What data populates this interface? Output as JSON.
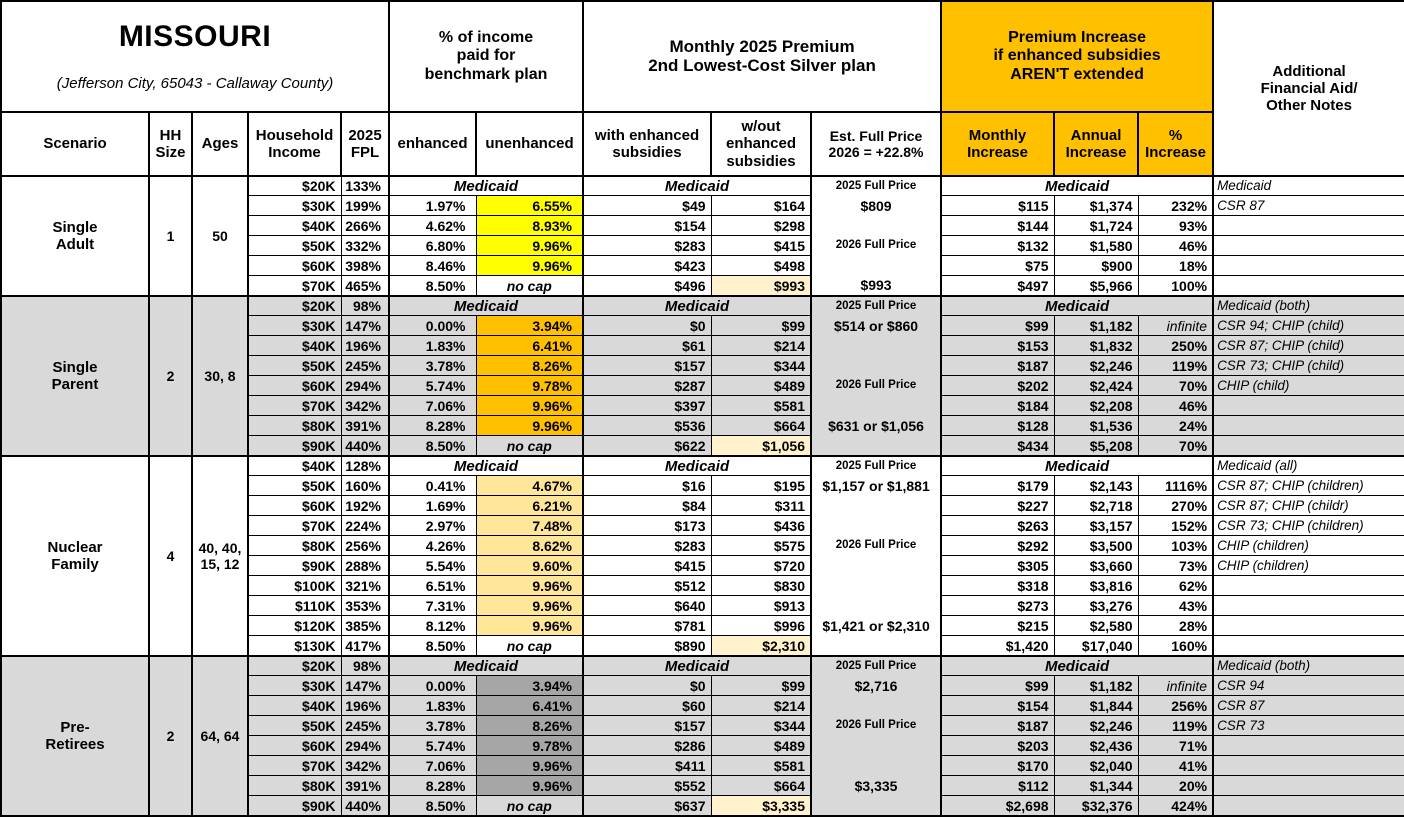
{
  "header": {
    "title": "MISSOURI",
    "subtitle": "(Jefferson City, 65043 - Callaway County)",
    "pct_income_group": "% of income\npaid for\nbenchmark plan",
    "premium_group": "Monthly 2025 Premium\n2nd Lowest-Cost Silver plan",
    "increase_group": "Premium Increase\nif enhanced subsidies\nAREN'T extended",
    "notes_header": "Additional\nFinancial Aid/\nOther Notes",
    "cols": {
      "scenario": "Scenario",
      "hh_size": "HH\nSize",
      "ages": "Ages",
      "income": "Household\nIncome",
      "fpl": "2025\nFPL",
      "enhanced": "enhanced",
      "unenhanced": "unenhanced",
      "with_sub": "with enhanced\nsubsidies",
      "wout_sub": "w/out\nenhanced\nsubsidies",
      "est": "Est. Full Price\n2026 = +22.8%",
      "monthly": "Monthly\nIncrease",
      "annual": "Annual\nIncrease",
      "pct": "%\nIncrease"
    }
  },
  "labels": {
    "medicaid": "Medicaid",
    "no_cap": "no cap"
  },
  "colors": {
    "header_orange": "#FFC000",
    "yellow": "#FFFF00",
    "single_parent_orange": "#FFC000",
    "nuclear_tan": "#FFE699",
    "preretiree_gray": "#A6A6A6",
    "band_gray": "#D9D9D9",
    "highlight_cream": "#FFF2CC",
    "border": "#000000"
  },
  "scenarios": [
    {
      "name": "Single\nAdult",
      "hh_size": "1",
      "ages": "50",
      "band": "white",
      "unenhanced_bg": "#FFFF00",
      "rows": [
        {
          "income": "$20K",
          "fpl": "133%",
          "medicaid": true,
          "est": "2025 Full Price",
          "note": "Medicaid"
        },
        {
          "income": "$30K",
          "fpl": "199%",
          "enhanced": "1.97%",
          "unenhanced": "6.55%",
          "with_sub": "$49",
          "wout_sub": "$164",
          "est": "$809",
          "monthly": "$115",
          "annual": "$1,374",
          "pct": "232%",
          "note": "CSR 87"
        },
        {
          "income": "$40K",
          "fpl": "266%",
          "enhanced": "4.62%",
          "unenhanced": "8.93%",
          "with_sub": "$154",
          "wout_sub": "$298",
          "est": "",
          "monthly": "$144",
          "annual": "$1,724",
          "pct": "93%",
          "note": ""
        },
        {
          "income": "$50K",
          "fpl": "332%",
          "enhanced": "6.80%",
          "unenhanced": "9.96%",
          "with_sub": "$283",
          "wout_sub": "$415",
          "est": "2026 Full Price",
          "monthly": "$132",
          "annual": "$1,580",
          "pct": "46%",
          "note": ""
        },
        {
          "income": "$60K",
          "fpl": "398%",
          "enhanced": "8.46%",
          "unenhanced": "9.96%",
          "with_sub": "$423",
          "wout_sub": "$498",
          "est": "",
          "monthly": "$75",
          "annual": "$900",
          "pct": "18%",
          "note": ""
        },
        {
          "income": "$70K",
          "fpl": "465%",
          "enhanced": "8.50%",
          "unenhanced": "no cap",
          "with_sub": "$496",
          "wout_sub": "$993",
          "est": "$993",
          "monthly": "$497",
          "annual": "$5,966",
          "pct": "100%",
          "note": ""
        }
      ]
    },
    {
      "name": "Single\nParent",
      "hh_size": "2",
      "ages": "30, 8",
      "band": "gray",
      "unenhanced_bg": "#FFC000",
      "rows": [
        {
          "income": "$20K",
          "fpl": "98%",
          "medicaid": true,
          "est": "2025 Full Price",
          "note": "Medicaid (both)"
        },
        {
          "income": "$30K",
          "fpl": "147%",
          "enhanced": "0.00%",
          "unenhanced": "3.94%",
          "with_sub": "$0",
          "wout_sub": "$99",
          "est": "$514 or $860",
          "monthly": "$99",
          "annual": "$1,182",
          "pct": "infinite",
          "note": "CSR 94; CHIP (child)"
        },
        {
          "income": "$40K",
          "fpl": "196%",
          "enhanced": "1.83%",
          "unenhanced": "6.41%",
          "with_sub": "$61",
          "wout_sub": "$214",
          "est": "",
          "monthly": "$153",
          "annual": "$1,832",
          "pct": "250%",
          "note": "CSR 87; CHIP (child)"
        },
        {
          "income": "$50K",
          "fpl": "245%",
          "enhanced": "3.78%",
          "unenhanced": "8.26%",
          "with_sub": "$157",
          "wout_sub": "$344",
          "est": "",
          "monthly": "$187",
          "annual": "$2,246",
          "pct": "119%",
          "note": "CSR 73; CHIP (child)"
        },
        {
          "income": "$60K",
          "fpl": "294%",
          "enhanced": "5.74%",
          "unenhanced": "9.78%",
          "with_sub": "$287",
          "wout_sub": "$489",
          "est": "2026 Full Price",
          "monthly": "$202",
          "annual": "$2,424",
          "pct": "70%",
          "note": "CHIP (child)"
        },
        {
          "income": "$70K",
          "fpl": "342%",
          "enhanced": "7.06%",
          "unenhanced": "9.96%",
          "with_sub": "$397",
          "wout_sub": "$581",
          "est": "",
          "monthly": "$184",
          "annual": "$2,208",
          "pct": "46%",
          "note": ""
        },
        {
          "income": "$80K",
          "fpl": "391%",
          "enhanced": "8.28%",
          "unenhanced": "9.96%",
          "with_sub": "$536",
          "wout_sub": "$664",
          "est": "$631 or $1,056",
          "monthly": "$128",
          "annual": "$1,536",
          "pct": "24%",
          "note": ""
        },
        {
          "income": "$90K",
          "fpl": "440%",
          "enhanced": "8.50%",
          "unenhanced": "no cap",
          "with_sub": "$622",
          "wout_sub": "$1,056",
          "est": "",
          "monthly": "$434",
          "annual": "$5,208",
          "pct": "70%",
          "note": ""
        }
      ]
    },
    {
      "name": "Nuclear\nFamily",
      "hh_size": "4",
      "ages": "40, 40,\n15, 12",
      "band": "white",
      "unenhanced_bg": "#FFE699",
      "rows": [
        {
          "income": "$40K",
          "fpl": "128%",
          "medicaid": true,
          "est": "2025 Full Price",
          "note": "Medicaid (all)"
        },
        {
          "income": "$50K",
          "fpl": "160%",
          "enhanced": "0.41%",
          "unenhanced": "4.67%",
          "with_sub": "$16",
          "wout_sub": "$195",
          "est": "$1,157 or $1,881",
          "monthly": "$179",
          "annual": "$2,143",
          "pct": "1116%",
          "note": "CSR 87; CHIP (children)"
        },
        {
          "income": "$60K",
          "fpl": "192%",
          "enhanced": "1.69%",
          "unenhanced": "6.21%",
          "with_sub": "$84",
          "wout_sub": "$311",
          "est": "",
          "monthly": "$227",
          "annual": "$2,718",
          "pct": "270%",
          "note": "CSR 87; CHIP (childr)"
        },
        {
          "income": "$70K",
          "fpl": "224%",
          "enhanced": "2.97%",
          "unenhanced": "7.48%",
          "with_sub": "$173",
          "wout_sub": "$436",
          "est": "",
          "monthly": "$263",
          "annual": "$3,157",
          "pct": "152%",
          "note": "CSR 73; CHIP (children)"
        },
        {
          "income": "$80K",
          "fpl": "256%",
          "enhanced": "4.26%",
          "unenhanced": "8.62%",
          "with_sub": "$283",
          "wout_sub": "$575",
          "est": "2026 Full Price",
          "monthly": "$292",
          "annual": "$3,500",
          "pct": "103%",
          "note": "CHIP (children)"
        },
        {
          "income": "$90K",
          "fpl": "288%",
          "enhanced": "5.54%",
          "unenhanced": "9.60%",
          "with_sub": "$415",
          "wout_sub": "$720",
          "est": "",
          "monthly": "$305",
          "annual": "$3,660",
          "pct": "73%",
          "note": "CHIP (children)"
        },
        {
          "income": "$100K",
          "fpl": "321%",
          "enhanced": "6.51%",
          "unenhanced": "9.96%",
          "with_sub": "$512",
          "wout_sub": "$830",
          "est": "",
          "monthly": "$318",
          "annual": "$3,816",
          "pct": "62%",
          "note": ""
        },
        {
          "income": "$110K",
          "fpl": "353%",
          "enhanced": "7.31%",
          "unenhanced": "9.96%",
          "with_sub": "$640",
          "wout_sub": "$913",
          "est": "",
          "monthly": "$273",
          "annual": "$3,276",
          "pct": "43%",
          "note": ""
        },
        {
          "income": "$120K",
          "fpl": "385%",
          "enhanced": "8.12%",
          "unenhanced": "9.96%",
          "with_sub": "$781",
          "wout_sub": "$996",
          "est": "$1,421 or $2,310",
          "monthly": "$215",
          "annual": "$2,580",
          "pct": "28%",
          "note": ""
        },
        {
          "income": "$130K",
          "fpl": "417%",
          "enhanced": "8.50%",
          "unenhanced": "no cap",
          "with_sub": "$890",
          "wout_sub": "$2,310",
          "est": "",
          "monthly": "$1,420",
          "annual": "$17,040",
          "pct": "160%",
          "note": ""
        }
      ]
    },
    {
      "name": "Pre-\nRetirees",
      "hh_size": "2",
      "ages": "64, 64",
      "band": "gray",
      "unenhanced_bg": "#A6A6A6",
      "rows": [
        {
          "income": "$20K",
          "fpl": "98%",
          "medicaid": true,
          "est": "2025 Full Price",
          "note": "Medicaid (both)"
        },
        {
          "income": "$30K",
          "fpl": "147%",
          "enhanced": "0.00%",
          "unenhanced": "3.94%",
          "with_sub": "$0",
          "wout_sub": "$99",
          "est": "$2,716",
          "monthly": "$99",
          "annual": "$1,182",
          "pct": "infinite",
          "note": "CSR 94"
        },
        {
          "income": "$40K",
          "fpl": "196%",
          "enhanced": "1.83%",
          "unenhanced": "6.41%",
          "with_sub": "$60",
          "wout_sub": "$214",
          "est": "",
          "monthly": "$154",
          "annual": "$1,844",
          "pct": "256%",
          "note": "CSR 87"
        },
        {
          "income": "$50K",
          "fpl": "245%",
          "enhanced": "3.78%",
          "unenhanced": "8.26%",
          "with_sub": "$157",
          "wout_sub": "$344",
          "est": "2026 Full Price",
          "monthly": "$187",
          "annual": "$2,246",
          "pct": "119%",
          "note": "CSR 73"
        },
        {
          "income": "$60K",
          "fpl": "294%",
          "enhanced": "5.74%",
          "unenhanced": "9.78%",
          "with_sub": "$286",
          "wout_sub": "$489",
          "est": "",
          "monthly": "$203",
          "annual": "$2,436",
          "pct": "71%",
          "note": ""
        },
        {
          "income": "$70K",
          "fpl": "342%",
          "enhanced": "7.06%",
          "unenhanced": "9.96%",
          "with_sub": "$411",
          "wout_sub": "$581",
          "est": "",
          "monthly": "$170",
          "annual": "$2,040",
          "pct": "41%",
          "note": ""
        },
        {
          "income": "$80K",
          "fpl": "391%",
          "enhanced": "8.28%",
          "unenhanced": "9.96%",
          "with_sub": "$552",
          "wout_sub": "$664",
          "est": "$3,335",
          "monthly": "$112",
          "annual": "$1,344",
          "pct": "20%",
          "note": ""
        },
        {
          "income": "$90K",
          "fpl": "440%",
          "enhanced": "8.50%",
          "unenhanced": "no cap",
          "with_sub": "$637",
          "wout_sub": "$3,335",
          "est": "",
          "monthly": "$2,698",
          "annual": "$32,376",
          "pct": "424%",
          "note": ""
        }
      ]
    }
  ]
}
